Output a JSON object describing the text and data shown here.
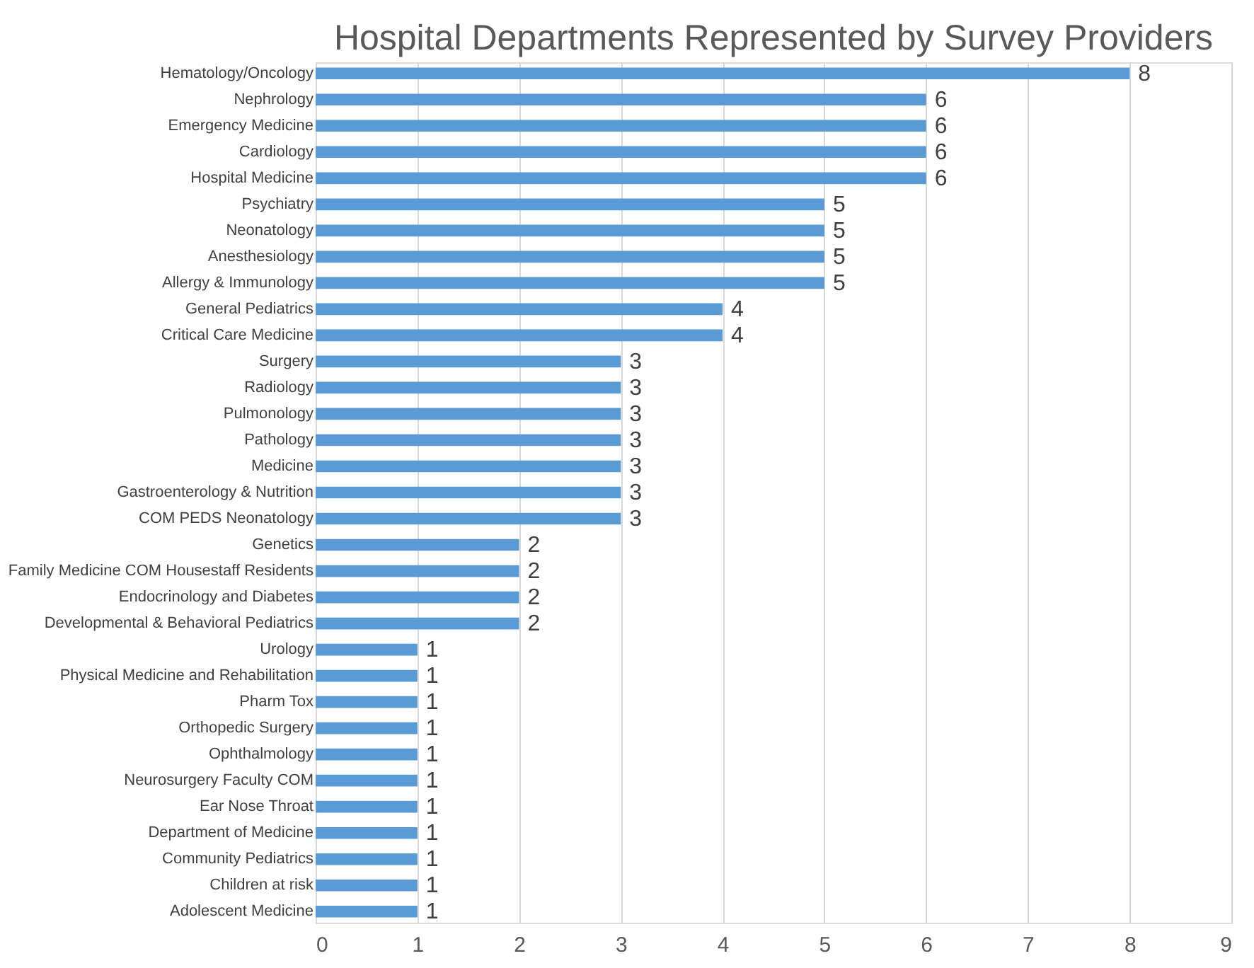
{
  "chart_data": {
    "type": "bar",
    "orientation": "horizontal",
    "title": "Hospital Departments Represented by Survey Providers",
    "categories": [
      "Hematology/Oncology",
      "Nephrology",
      "Emergency Medicine",
      "Cardiology",
      "Hospital Medicine",
      "Psychiatry",
      "Neonatology",
      "Anesthesiology",
      "Allergy & Immunology",
      "General Pediatrics",
      "Critical Care Medicine",
      "Surgery",
      "Radiology",
      "Pulmonology",
      "Pathology",
      "Medicine",
      "Gastroenterology & Nutrition",
      "COM PEDS Neonatology",
      "Genetics",
      "Family Medicine COM Housestaff Residents",
      "Endocrinology and Diabetes",
      "Developmental & Behavioral Pediatrics",
      "Urology",
      "Physical Medicine and Rehabilitation",
      "Pharm Tox",
      "Orthopedic Surgery",
      "Ophthalmology",
      "Neurosurgery Faculty COM",
      "Ear Nose Throat",
      "Department of Medicine",
      "Community Pediatrics",
      "Children at risk",
      "Adolescent Medicine"
    ],
    "values": [
      8,
      6,
      6,
      6,
      6,
      5,
      5,
      5,
      5,
      4,
      4,
      3,
      3,
      3,
      3,
      3,
      3,
      3,
      2,
      2,
      2,
      2,
      1,
      1,
      1,
      1,
      1,
      1,
      1,
      1,
      1,
      1,
      1
    ],
    "color": "#5b9bd5",
    "xlim": [
      0,
      9
    ],
    "xticks": [
      0,
      1,
      2,
      3,
      4,
      5,
      6,
      7,
      8,
      9
    ],
    "grid": "x",
    "data_labels": true
  }
}
